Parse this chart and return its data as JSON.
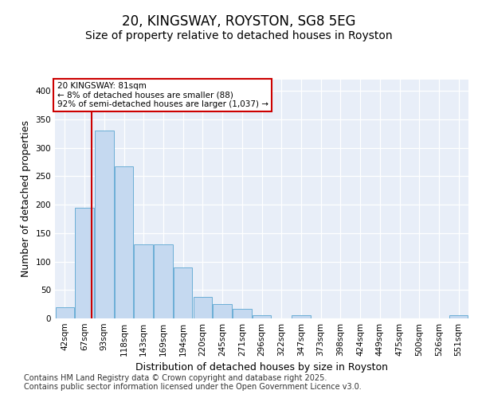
{
  "title": "20, KINGSWAY, ROYSTON, SG8 5EG",
  "subtitle": "Size of property relative to detached houses in Royston",
  "xlabel": "Distribution of detached houses by size in Royston",
  "ylabel": "Number of detached properties",
  "categories": [
    "42sqm",
    "67sqm",
    "93sqm",
    "118sqm",
    "143sqm",
    "169sqm",
    "194sqm",
    "220sqm",
    "245sqm",
    "271sqm",
    "296sqm",
    "322sqm",
    "347sqm",
    "373sqm",
    "398sqm",
    "424sqm",
    "449sqm",
    "475sqm",
    "500sqm",
    "526sqm",
    "551sqm"
  ],
  "values": [
    20,
    195,
    330,
    268,
    130,
    130,
    90,
    38,
    25,
    17,
    5,
    0,
    5,
    0,
    0,
    0,
    0,
    0,
    0,
    0,
    5
  ],
  "bar_color": "#c5d9f0",
  "bar_edgecolor": "#6baed6",
  "property_line_x": 1.35,
  "annotation_text": "20 KINGSWAY: 81sqm\n← 8% of detached houses are smaller (88)\n92% of semi-detached houses are larger (1,037) →",
  "annotation_box_color": "#ffffff",
  "annotation_box_edgecolor": "#cc0000",
  "vline_color": "#cc0000",
  "ylim": [
    0,
    420
  ],
  "yticks": [
    0,
    50,
    100,
    150,
    200,
    250,
    300,
    350,
    400
  ],
  "background_color": "#e8eef8",
  "footer_line1": "Contains HM Land Registry data © Crown copyright and database right 2025.",
  "footer_line2": "Contains public sector information licensed under the Open Government Licence v3.0.",
  "title_fontsize": 12,
  "subtitle_fontsize": 10,
  "tick_fontsize": 7.5,
  "label_fontsize": 9,
  "footer_fontsize": 7
}
